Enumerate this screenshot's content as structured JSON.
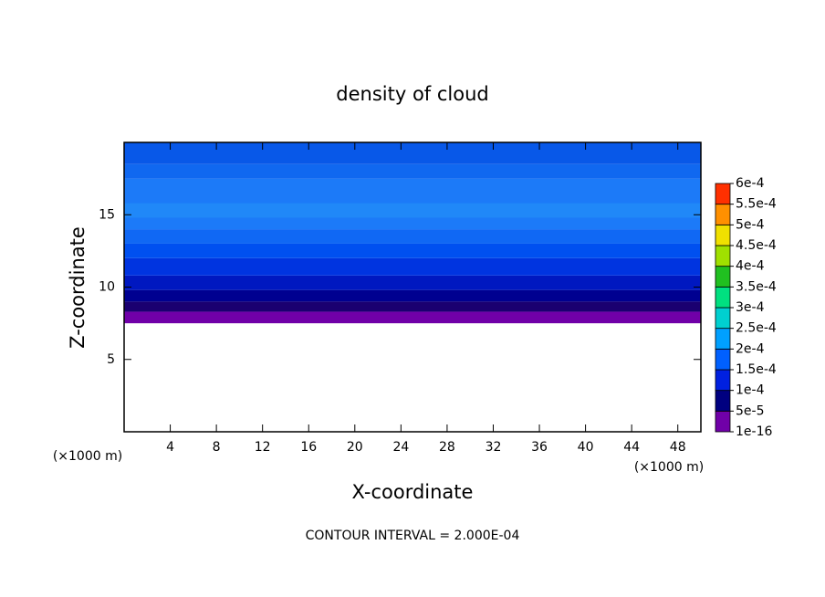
{
  "chart_data": {
    "type": "contour",
    "title": "density of cloud",
    "xlabel": "X-coordinate",
    "ylabel": "Z-coordinate",
    "x_unit": "(×1000 m)",
    "y_unit": "(×1000 m)",
    "note": "CONTOUR INTERVAL = 2.000E-04",
    "xlim": [
      0,
      50
    ],
    "xticks": [
      4,
      8,
      12,
      16,
      20,
      24,
      28,
      32,
      36,
      40,
      44,
      48
    ],
    "ylim": [
      0,
      20
    ],
    "yticks": [
      5,
      10,
      15
    ],
    "bands": [
      {
        "z": [
          7.5,
          8.3
        ],
        "color": "#7000a8"
      },
      {
        "z": [
          8.3,
          9.0
        ],
        "color": "#1a0070"
      },
      {
        "z": [
          9.0,
          9.8
        ],
        "color": "#000090"
      },
      {
        "z": [
          9.8,
          10.8
        ],
        "color": "#0018c0"
      },
      {
        "z": [
          10.8,
          12
        ],
        "color": "#0034e0"
      },
      {
        "z": [
          12,
          13
        ],
        "color": "#0050f0"
      },
      {
        "z": [
          13,
          14
        ],
        "color": "#1068f4"
      },
      {
        "z": [
          14,
          17.5
        ],
        "color": "#1c7af8"
      },
      {
        "z": [
          14.8,
          15.8
        ],
        "color": "#2088f8"
      },
      {
        "z": [
          17.5,
          18.5
        ],
        "color": "#1068f0"
      },
      {
        "z": [
          18.5,
          20
        ],
        "color": "#0858e8"
      }
    ],
    "colorbar": {
      "ticks": [
        {
          "value": 1e-16,
          "label": "1e-16"
        },
        {
          "value": 5e-05,
          "label": "5e-5"
        },
        {
          "value": 0.0001,
          "label": "1e-4"
        },
        {
          "value": 0.00015,
          "label": "1.5e-4"
        },
        {
          "value": 0.0002,
          "label": "2e-4"
        },
        {
          "value": 0.00025,
          "label": "2.5e-4"
        },
        {
          "value": 0.0003,
          "label": "3e-4"
        },
        {
          "value": 0.00035,
          "label": "3.5e-4"
        },
        {
          "value": 0.0004,
          "label": "4e-4"
        },
        {
          "value": 0.00045,
          "label": "4.5e-4"
        },
        {
          "value": 0.0005,
          "label": "5e-4"
        },
        {
          "value": 0.00055,
          "label": "5.5e-4"
        },
        {
          "value": 0.0006,
          "label": "6e-4"
        }
      ],
      "colors": [
        "#7000a8",
        "#000080",
        "#0020e0",
        "#0060ff",
        "#00a0ff",
        "#00d0d0",
        "#00e080",
        "#20c020",
        "#a0e000",
        "#f0e000",
        "#ff9000",
        "#ff3000",
        "#ff8080"
      ]
    }
  }
}
